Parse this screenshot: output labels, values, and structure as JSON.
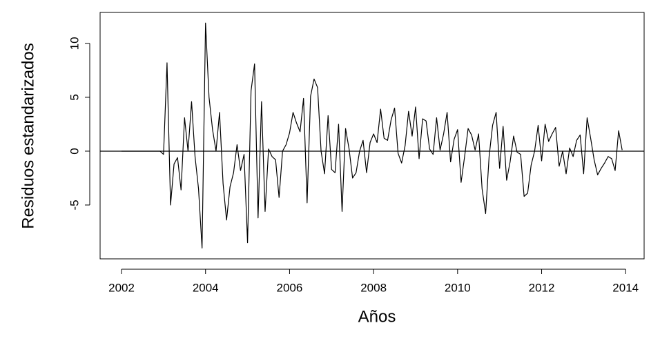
{
  "chart_data": {
    "type": "line",
    "x_label": "Años",
    "y_label": "Residuos estandarizados",
    "xlim": [
      2001.49,
      2014.44
    ],
    "ylim": [
      -10.0,
      12.88
    ],
    "xticks": [
      2002,
      2004,
      2006,
      2008,
      2010,
      2012,
      2014
    ],
    "yticks": [
      -5,
      0,
      5,
      10
    ],
    "hline": 0,
    "x": [
      2002,
      2002.083,
      2002.167,
      2002.25,
      2002.333,
      2002.417,
      2002.5,
      2002.583,
      2002.667,
      2002.75,
      2002.833,
      2002.917,
      2003,
      2003.083,
      2003.167,
      2003.25,
      2003.333,
      2003.417,
      2003.5,
      2003.583,
      2003.667,
      2003.75,
      2003.833,
      2003.917,
      2004,
      2004.083,
      2004.167,
      2004.25,
      2004.333,
      2004.417,
      2004.5,
      2004.583,
      2004.667,
      2004.75,
      2004.833,
      2004.917,
      2005,
      2005.083,
      2005.167,
      2005.25,
      2005.333,
      2005.417,
      2005.5,
      2005.583,
      2005.667,
      2005.75,
      2005.833,
      2005.917,
      2006,
      2006.083,
      2006.167,
      2006.25,
      2006.333,
      2006.417,
      2006.5,
      2006.583,
      2006.667,
      2006.75,
      2006.833,
      2006.917,
      2007,
      2007.083,
      2007.167,
      2007.25,
      2007.333,
      2007.417,
      2007.5,
      2007.583,
      2007.667,
      2007.75,
      2007.833,
      2007.917,
      2008,
      2008.083,
      2008.167,
      2008.25,
      2008.333,
      2008.417,
      2008.5,
      2008.583,
      2008.667,
      2008.75,
      2008.833,
      2008.917,
      2009,
      2009.083,
      2009.167,
      2009.25,
      2009.333,
      2009.417,
      2009.5,
      2009.583,
      2009.667,
      2009.75,
      2009.833,
      2009.917,
      2010,
      2010.083,
      2010.167,
      2010.25,
      2010.333,
      2010.417,
      2010.5,
      2010.583,
      2010.667,
      2010.75,
      2010.833,
      2010.917,
      2011,
      2011.083,
      2011.167,
      2011.25,
      2011.333,
      2011.417,
      2011.5,
      2011.583,
      2011.667,
      2011.75,
      2011.833,
      2011.917,
      2012,
      2012.083,
      2012.167,
      2012.25,
      2012.333,
      2012.417,
      2012.5,
      2012.583,
      2012.667,
      2012.75,
      2012.833,
      2012.917,
      2013,
      2013.083,
      2013.167,
      2013.25,
      2013.333,
      2013.417,
      2013.5,
      2013.583,
      2013.667,
      2013.75,
      2013.833,
      2013.917
    ],
    "series": [
      {
        "color": "#000000",
        "values": [
          0,
          0,
          0,
          0,
          0,
          0,
          0,
          0,
          0,
          0,
          0,
          0,
          -0.3,
          8.2,
          -5.0,
          -1.2,
          -0.6,
          -3.6,
          3.1,
          0,
          4.6,
          -0.5,
          -3.5,
          -9.0,
          11.9,
          5.0,
          2.0,
          0,
          3.6,
          -3.0,
          -6.4,
          -3.3,
          -2.0,
          0.6,
          -1.8,
          -0.3,
          -8.5,
          5.6,
          8.1,
          -6.2,
          4.6,
          -5.6,
          0.2,
          -0.5,
          -0.8,
          -4.3,
          0,
          0.6,
          1.7,
          3.6,
          2.6,
          1.8,
          4.9,
          -4.8,
          5.1,
          6.7,
          5.9,
          0,
          -2.1,
          3.3,
          -1.7,
          -2.0,
          2.5,
          -5.6,
          2.1,
          0.2,
          -2.5,
          -2.0,
          0,
          1.0,
          -2.0,
          0.8,
          1.6,
          0.8,
          3.9,
          1.2,
          1.0,
          2.9,
          4.0,
          -0.2,
          -1.1,
          0.5,
          3.7,
          1.4,
          4.1,
          -0.7,
          3.0,
          2.8,
          0.2,
          -0.3,
          3.1,
          0.1,
          1.6,
          3.6,
          -1.0,
          1.1,
          2.0,
          -2.9,
          -0.5,
          2.1,
          1.5,
          0.1,
          1.6,
          -3.5,
          -5.8,
          -0.5,
          2.4,
          3.6,
          -1.6,
          2.3,
          -2.7,
          -1.0,
          1.4,
          -0.1,
          -0.3,
          -4.2,
          -3.9,
          -1.3,
          0,
          2.4,
          -0.9,
          2.5,
          0.9,
          1.6,
          2.2,
          -1.4,
          0,
          -2.1,
          0.3,
          -0.5,
          1.0,
          1.5,
          -2.1,
          3.1,
          1.2,
          -0.8,
          -2.2,
          -1.6,
          -1.1,
          -0.5,
          -0.7,
          -1.8,
          1.9,
          0.1
        ]
      }
    ]
  }
}
